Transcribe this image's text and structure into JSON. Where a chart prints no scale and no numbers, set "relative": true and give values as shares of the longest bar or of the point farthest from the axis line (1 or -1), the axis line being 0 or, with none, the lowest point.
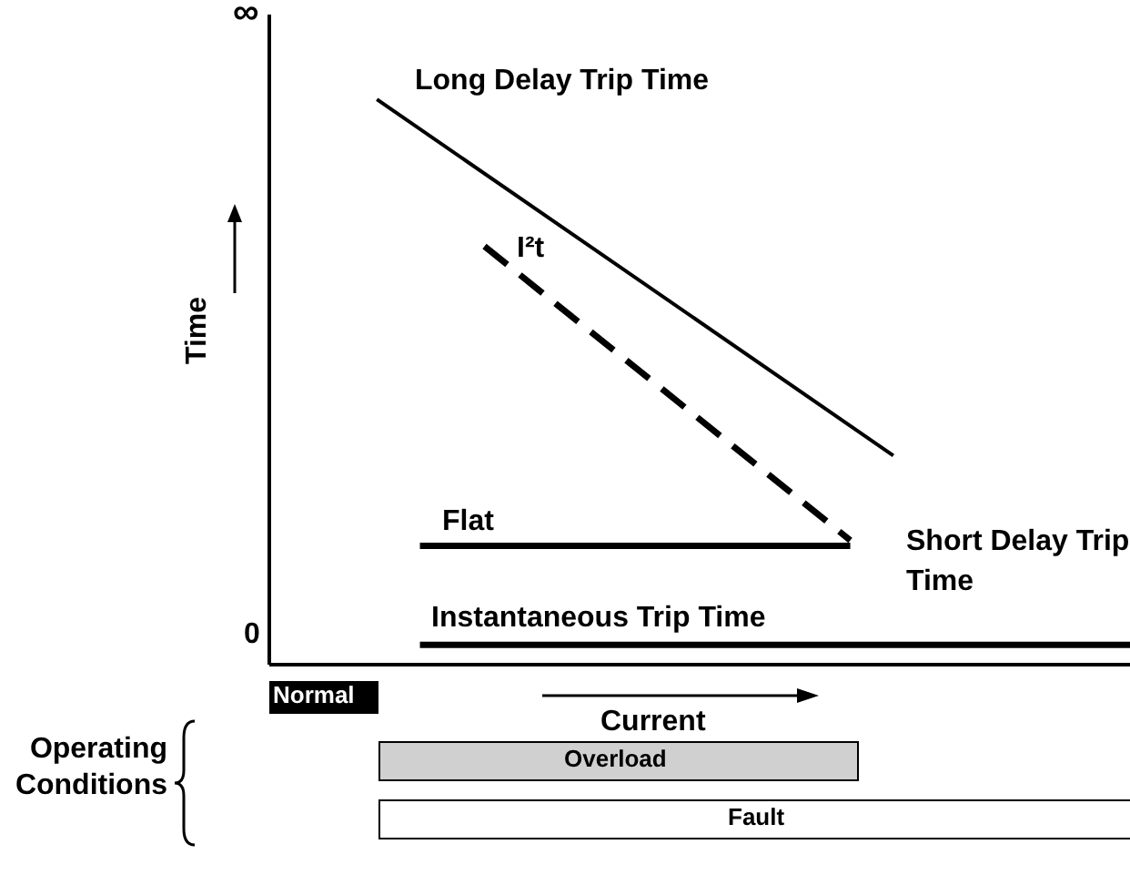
{
  "chart_data": {
    "type": "line",
    "relative": true,
    "xlabel": "Current",
    "ylabel": "Time",
    "legend": false,
    "grid": false,
    "marker": "none",
    "categories": [
      null,
      null,
      null,
      null,
      null,
      null,
      null,
      null,
      null,
      null,
      null,
      null,
      null,
      null,
      null,
      null,
      null,
      null,
      null,
      null,
      null,
      null,
      null,
      null,
      null,
      null,
      null,
      null,
      null,
      null,
      null,
      null,
      null,
      null,
      null,
      null,
      null,
      null,
      null,
      null,
      null
    ],
    "series": [
      {
        "name": "Long Delay Trip Time",
        "color": "#000000",
        "line_style": "solid",
        "values": [
          null,
          null,
          null,
          null,
          null,
          1,
          null,
          null,
          null,
          null,
          null,
          null,
          null,
          null,
          null,
          null,
          null,
          null,
          null,
          null,
          null,
          null,
          null,
          null,
          null,
          null,
          null,
          null,
          null,
          0.37,
          null,
          null,
          null,
          null,
          null,
          null,
          null,
          null,
          null,
          null,
          null
        ]
      },
      {
        "name": "I²t",
        "color": "#000000",
        "line_style": "dashed",
        "values": [
          null,
          null,
          null,
          null,
          null,
          null,
          null,
          null,
          null,
          null,
          0.74,
          null,
          null,
          null,
          null,
          null,
          null,
          null,
          null,
          null,
          null,
          null,
          null,
          null,
          null,
          null,
          null,
          0.22,
          null,
          null,
          null,
          null,
          null,
          null,
          null,
          null,
          null,
          null,
          null,
          null,
          null
        ]
      },
      {
        "name": "Flat",
        "color": "#000000",
        "line_style": "solid",
        "values": [
          null,
          null,
          null,
          null,
          null,
          null,
          null,
          0.21,
          null,
          null,
          null,
          null,
          null,
          null,
          null,
          null,
          null,
          null,
          null,
          null,
          null,
          null,
          null,
          null,
          null,
          null,
          null,
          0.21,
          null,
          null,
          null,
          null,
          null,
          null,
          null,
          null,
          null,
          null,
          null,
          null,
          null
        ]
      },
      {
        "name": "Instantaneous Trip Time",
        "color": "#000000",
        "line_style": "solid",
        "values": [
          null,
          null,
          null,
          null,
          null,
          null,
          null,
          0.035,
          null,
          null,
          null,
          null,
          null,
          null,
          null,
          null,
          null,
          null,
          null,
          null,
          null,
          null,
          null,
          null,
          null,
          null,
          null,
          null,
          null,
          null,
          null,
          null,
          null,
          null,
          null,
          null,
          null,
          null,
          null,
          null,
          0.035
        ]
      }
    ],
    "annotations": [
      "∞",
      "0",
      "Short Delay Trip Time",
      "Operating Conditions",
      "Normal",
      "Overload",
      "Fault"
    ]
  }
}
